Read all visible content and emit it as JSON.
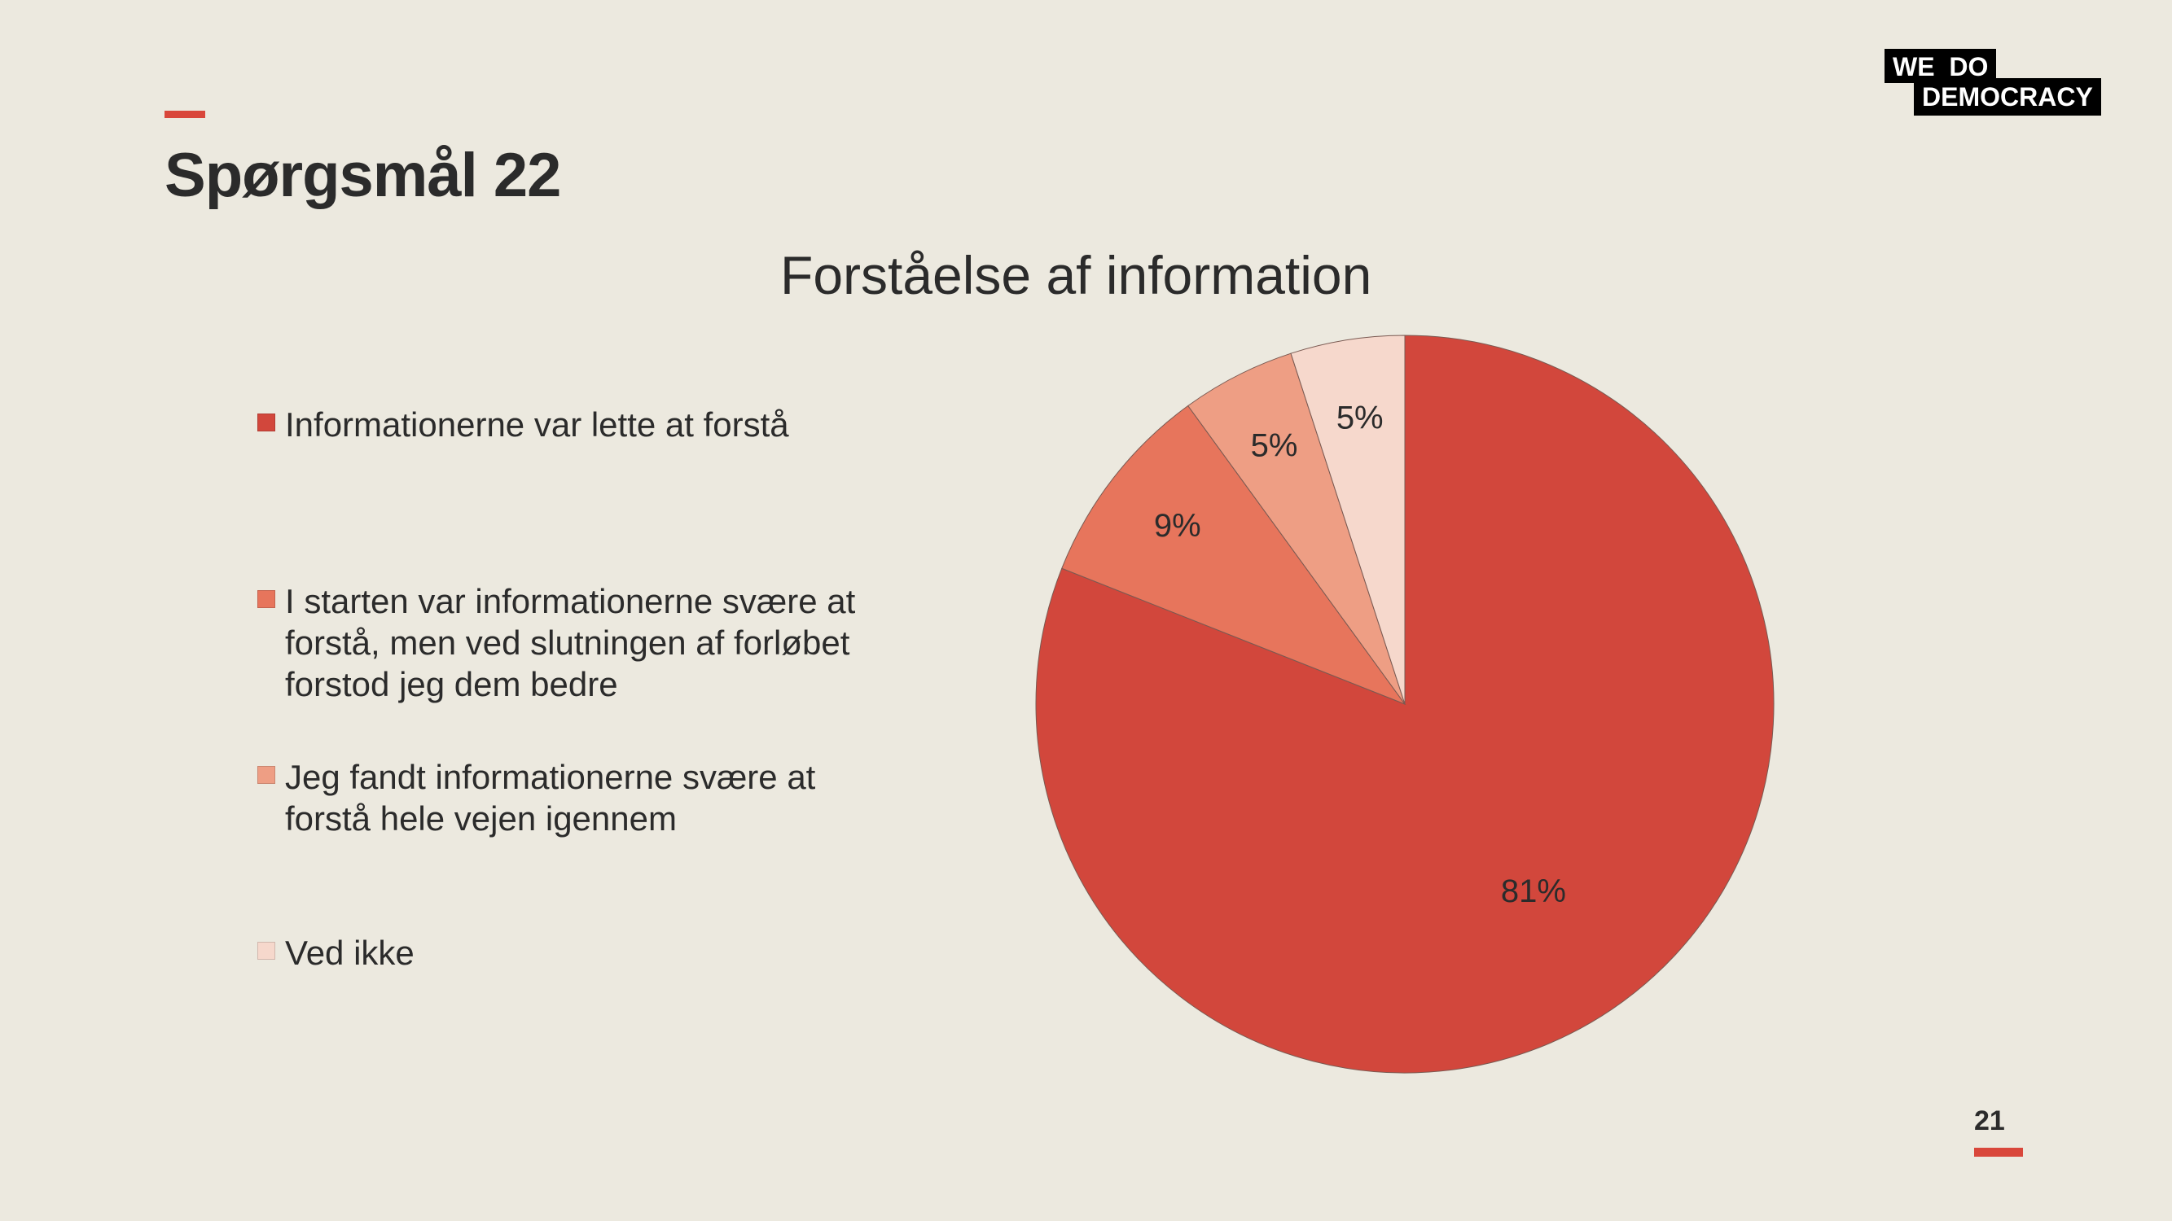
{
  "slide": {
    "title": "Spørgsmål 22",
    "page_number": "21",
    "logo": {
      "line1": "WE  DO",
      "line2": "DEMOCRACY"
    },
    "accent_color": "#D9473B",
    "background_color": "#ECE9DF"
  },
  "chart_data": {
    "type": "pie",
    "title": "Forståelse af information",
    "slices": [
      {
        "label": "Informationerne var lette at forstå",
        "value": 81,
        "display": "81%",
        "color": "#D2473C"
      },
      {
        "label": "I starten var informationerne svære at forstå, men ved slutningen af forløbet forstod jeg dem bedre",
        "value": 9,
        "display": "9%",
        "color": "#E7755C"
      },
      {
        "label": "Jeg fandt informationerne svære at forstå hele vejen igennem",
        "value": 5,
        "display": "5%",
        "color": "#EE9E84"
      },
      {
        "label": "Ved ikke",
        "value": 5,
        "display": "5%",
        "color": "#F6D8CC"
      }
    ],
    "start_angle": "12 o'clock",
    "direction": "clockwise",
    "legend_position": "left"
  }
}
